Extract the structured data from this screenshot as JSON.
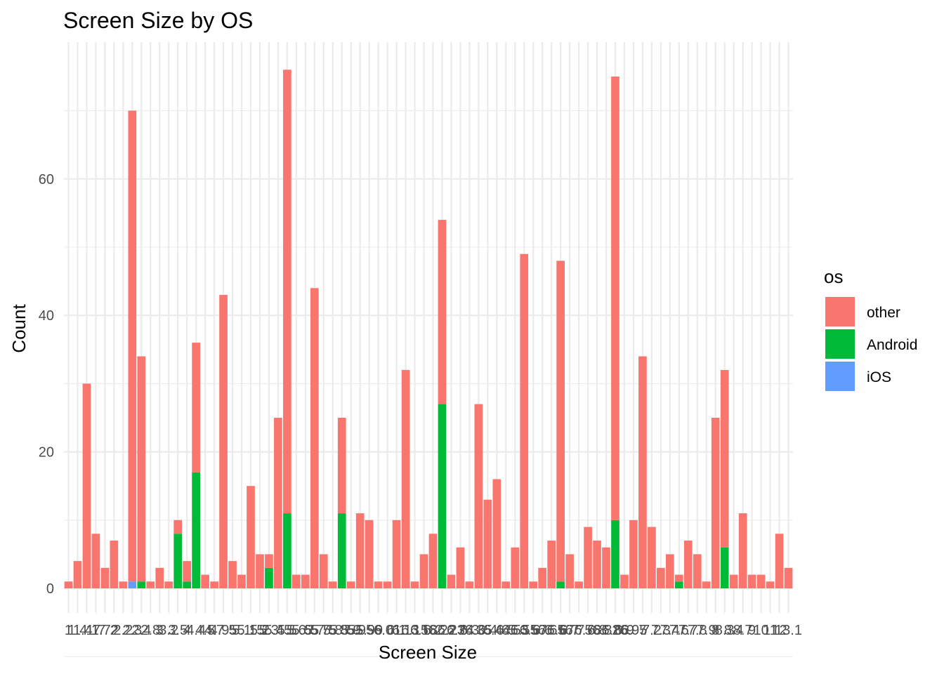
{
  "chart_data": {
    "type": "bar",
    "stacked": true,
    "title": "Screen Size by OS",
    "xlabel": "Screen Size",
    "ylabel": "Count",
    "ylim": [
      0,
      78
    ],
    "y_ticks": [
      0,
      20,
      40,
      60
    ],
    "grid": true,
    "legend": {
      "title": "os",
      "position": "right",
      "entries": [
        "other",
        "Android",
        "iOS"
      ]
    },
    "colors": {
      "other": "#F8766D",
      "Android": "#00BA38",
      "iOS": "#619CFF"
    },
    "category_count": 80,
    "x_tick_labels": [
      "1",
      "1.4",
      "1.47",
      "1.7",
      "1.72",
      "2",
      "2.2",
      "2.3",
      "2.4",
      "2.8",
      "3",
      "3.2",
      "3.5",
      "4",
      "4.4",
      "4.5",
      "4.7",
      "4.95",
      "5",
      "5.1",
      "5.15",
      "5.2",
      "5.3",
      "5.45",
      "5.5",
      "5.6",
      "5.65",
      "5.7",
      "5.75",
      "5.8",
      "5.85",
      "5.9",
      "5.95",
      "5.99",
      "6",
      "6.01",
      "6.1",
      "6.13",
      "6.15",
      "6.18",
      "6.2",
      "6.22",
      "6.23",
      "6.24",
      "6.3",
      "6.35",
      "6.4",
      "6.44",
      "6.5",
      "6.53",
      "6.55",
      "6.57",
      "6.6",
      "6.65",
      "6.67",
      "6.7",
      "6.75",
      "6.78",
      "6.8",
      "6.82",
      "6.86",
      "6.9",
      "6.95",
      "7",
      "7.2",
      "7.3",
      "7.4",
      "7.6",
      "7.7",
      "7.8",
      "7.9",
      "8",
      "8.3",
      "8.4",
      "8.7",
      "9",
      "10",
      "11",
      "12",
      "13.1"
    ],
    "series": [
      {
        "name": "other",
        "values": [
          1,
          4,
          30,
          8,
          3,
          7,
          1,
          69,
          33,
          1,
          3,
          1,
          2,
          3,
          19,
          2,
          1,
          43,
          4,
          2,
          15,
          5,
          2,
          25,
          65,
          2,
          2,
          44,
          5,
          1,
          14,
          1,
          11,
          10,
          1,
          1,
          10,
          32,
          1,
          5,
          8,
          27,
          2,
          6,
          1,
          27,
          13,
          16,
          1,
          6,
          49,
          1,
          3,
          7,
          47,
          5,
          1,
          9,
          7,
          6,
          65,
          2,
          10,
          34,
          9,
          3,
          5,
          1,
          7,
          5,
          1,
          25,
          26,
          2,
          11,
          2,
          2,
          1,
          8,
          3
        ]
      },
      {
        "name": "Android",
        "values": [
          0,
          0,
          0,
          0,
          0,
          0,
          0,
          0,
          1,
          0,
          0,
          0,
          8,
          1,
          17,
          0,
          0,
          0,
          0,
          0,
          0,
          0,
          3,
          0,
          11,
          0,
          0,
          0,
          0,
          0,
          11,
          0,
          0,
          0,
          0,
          0,
          0,
          0,
          0,
          0,
          0,
          27,
          0,
          0,
          0,
          0,
          0,
          0,
          0,
          0,
          0,
          0,
          0,
          0,
          1,
          0,
          0,
          0,
          0,
          0,
          10,
          0,
          0,
          0,
          0,
          0,
          0,
          1,
          0,
          0,
          0,
          0,
          6,
          0,
          0,
          0,
          0,
          0,
          0,
          0
        ]
      },
      {
        "name": "iOS",
        "values": [
          0,
          0,
          0,
          0,
          0,
          0,
          0,
          1,
          0,
          0,
          0,
          0,
          0,
          0,
          0,
          0,
          0,
          0,
          0,
          0,
          0,
          0,
          0,
          0,
          0,
          0,
          0,
          0,
          0,
          0,
          0,
          0,
          0,
          0,
          0,
          0,
          0,
          0,
          0,
          0,
          0,
          0,
          0,
          0,
          0,
          0,
          0,
          0,
          0,
          0,
          0,
          0,
          0,
          0,
          0,
          0,
          0,
          0,
          0,
          0,
          0,
          0,
          0,
          0,
          0,
          0,
          0,
          0,
          0,
          0,
          0,
          0,
          0,
          0,
          0,
          0,
          0,
          0,
          0,
          0
        ]
      }
    ]
  }
}
